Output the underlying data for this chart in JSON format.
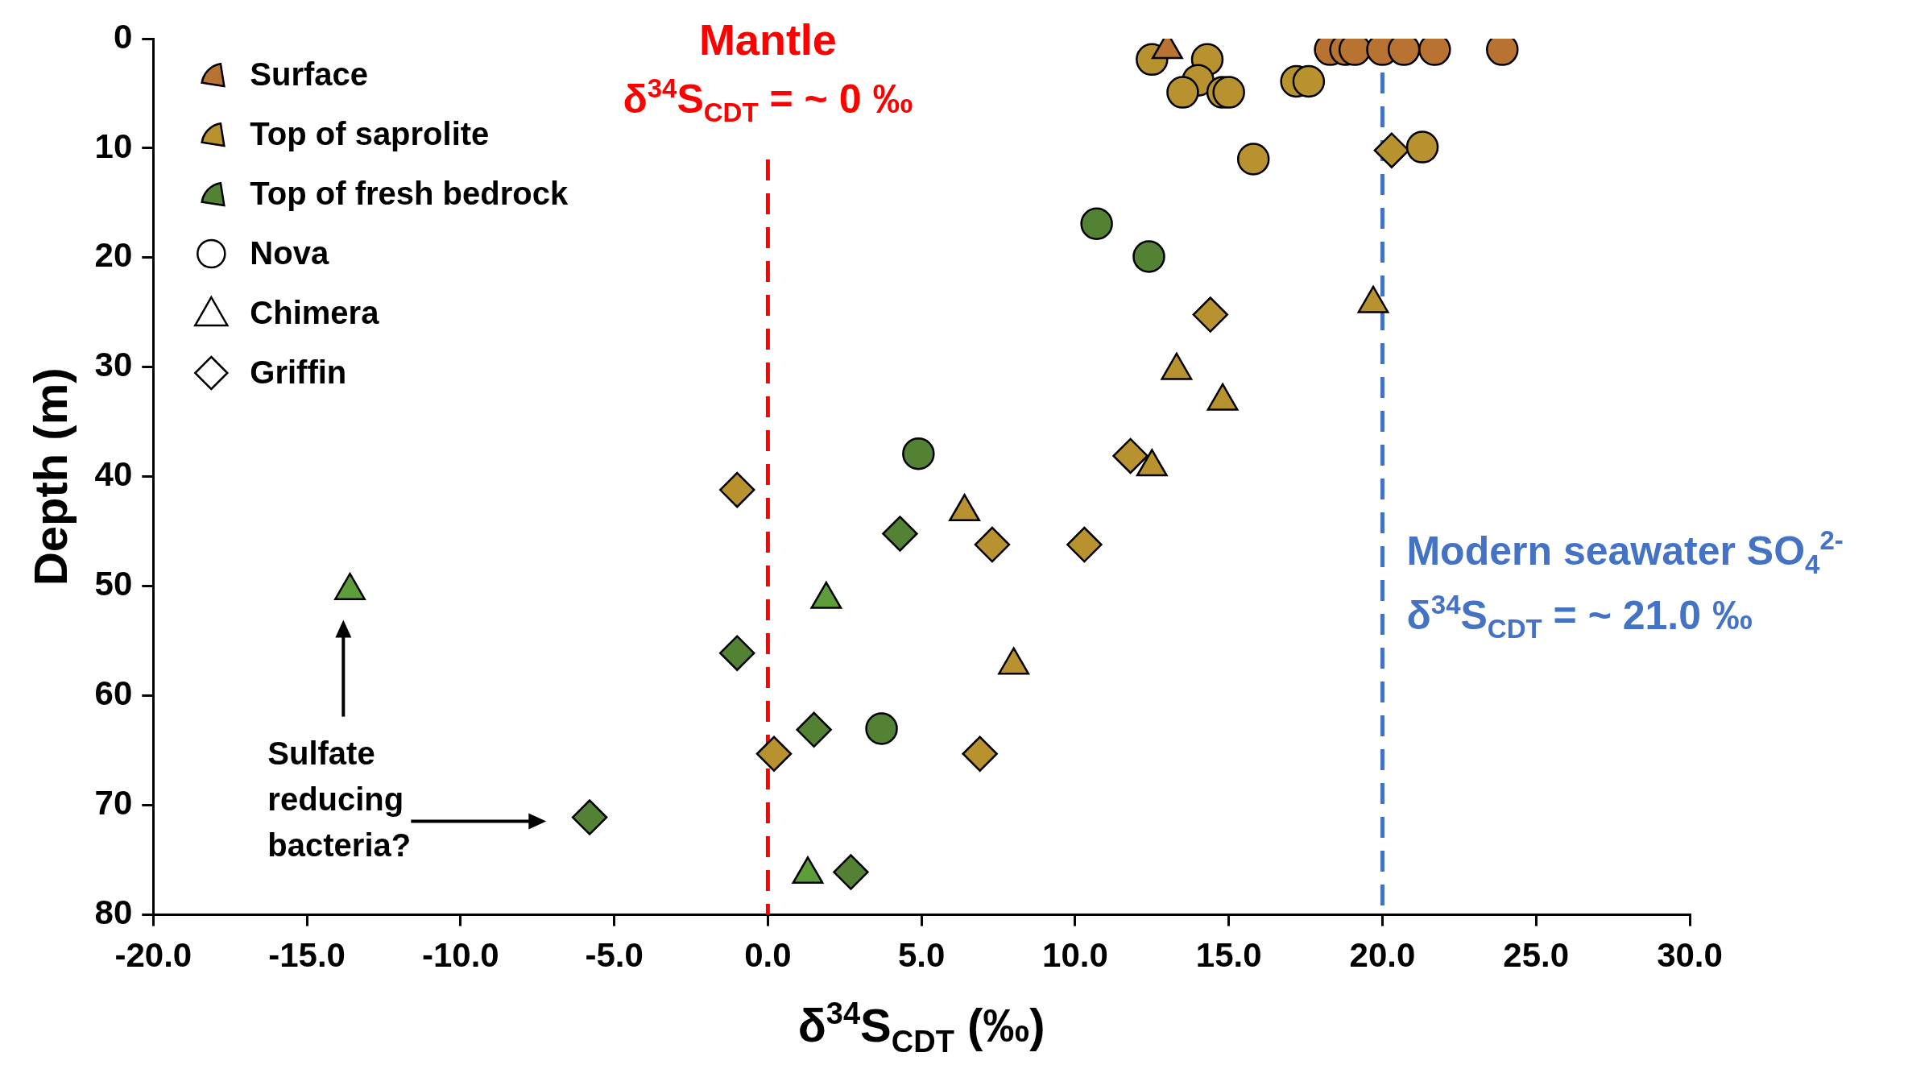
{
  "chart_data": {
    "type": "scatter",
    "xlabel": "δ$^{34}$S$_{CDT}$ (‰)",
    "ylabel": "Depth (m)",
    "xlim": [
      -20,
      30
    ],
    "xticks": [
      {
        "value": -20,
        "label": "-20.0"
      },
      {
        "value": -15,
        "label": "-15.0"
      },
      {
        "value": -10,
        "label": "-10.0"
      },
      {
        "value": -5,
        "label": "-5.0"
      },
      {
        "value": 0,
        "label": "0.0"
      },
      {
        "value": 5,
        "label": "5.0"
      },
      {
        "value": 10,
        "label": "10.0"
      },
      {
        "value": 15,
        "label": "15.0"
      },
      {
        "value": 20,
        "label": "20.0"
      },
      {
        "value": 25,
        "label": "25.0"
      },
      {
        "value": 30,
        "label": "30.0"
      }
    ],
    "ylim": [
      80,
      0
    ],
    "yticks": [
      0,
      10,
      20,
      30,
      40,
      50,
      60,
      70,
      80
    ],
    "grid": false,
    "legend": "top left",
    "series": [
      {
        "color": "#b87333",
        "marker": "circle",
        "x": [
          18.3,
          18.8,
          19.1,
          20.0,
          20.7,
          21.7,
          23.9
        ],
        "values": [
          1,
          1,
          1,
          1,
          1,
          1,
          1
        ]
      },
      {
        "color": "#b87333",
        "marker": "triangle",
        "x": [
          13.0
        ],
        "values": [
          1
        ]
      },
      {
        "color": "#b8922e",
        "marker": "circle",
        "x": [
          12.5,
          14.3,
          14.0,
          13.5,
          14.8,
          15.0,
          17.2,
          17.6,
          15.8,
          21.3
        ],
        "values": [
          1.9,
          1.9,
          3.8,
          4.9,
          4.9,
          4.9,
          3.9,
          3.9,
          11.0,
          9.9
        ]
      },
      {
        "color": "#b8922e",
        "marker": "triangle",
        "x": [
          19.7,
          13.3,
          14.8,
          12.5,
          6.4,
          8.0
        ],
        "values": [
          24.2,
          30.3,
          33.1,
          39.1,
          43.2,
          57.2
        ]
      },
      {
        "color": "#b8922e",
        "marker": "diamond",
        "x": [
          20.3,
          14.4,
          11.8,
          -1.0,
          7.3,
          10.3,
          0.2,
          6.9
        ],
        "values": [
          10.2,
          25.2,
          38.1,
          41.2,
          46.2,
          46.2,
          65.3,
          65.3
        ]
      },
      {
        "color": "#548235",
        "marker": "circle",
        "x": [
          10.7,
          12.4,
          4.9,
          3.7
        ],
        "values": [
          16.9,
          19.9,
          37.9,
          63.0
        ]
      },
      {
        "color": "#5e9e3a",
        "marker": "triangle",
        "x": [
          -13.6,
          1.9,
          1.3
        ],
        "values": [
          50.4,
          51.2,
          76.3
        ]
      },
      {
        "color": "#548235",
        "marker": "diamond",
        "x": [
          4.3,
          -1.0,
          1.5,
          2.7,
          -5.8
        ],
        "values": [
          45.2,
          56.1,
          63.1,
          76.1,
          71.1
        ]
      },
      {
        "name": "Surface",
        "color": "#b87333",
        "marker": "wedge"
      },
      {
        "name": "Top of saprolite",
        "color": "#b8922e",
        "marker": "wedge"
      },
      {
        "name": "Top of fresh bedrock",
        "color": "#548235",
        "marker": "wedge"
      },
      {
        "name": "Nova",
        "color": "#ffffff",
        "marker": "circle"
      },
      {
        "name": "Chimera",
        "color": "#ffffff",
        "marker": "triangle"
      },
      {
        "name": "Griffin",
        "color": "#ffffff",
        "marker": "diamond"
      }
    ],
    "ref_lines": [
      {
        "axis": "x",
        "value": 0,
        "label": "Mantle\nδ$^{34}$S$_{CDT}$ = ~ 0 ‰",
        "color": "#ff0000",
        "line_style": "dashed"
      },
      {
        "axis": "x",
        "value": 20,
        "label": "Modern seawater SO$_{4}$$^{2-}$\nδ$^{34}$S$_{CDT}$ = ~ 21.0 ‰",
        "color": "#4472c4",
        "line_style": "dashed"
      }
    ],
    "annotations": [
      "Sulfate\nreducing\nbacteria?"
    ]
  }
}
